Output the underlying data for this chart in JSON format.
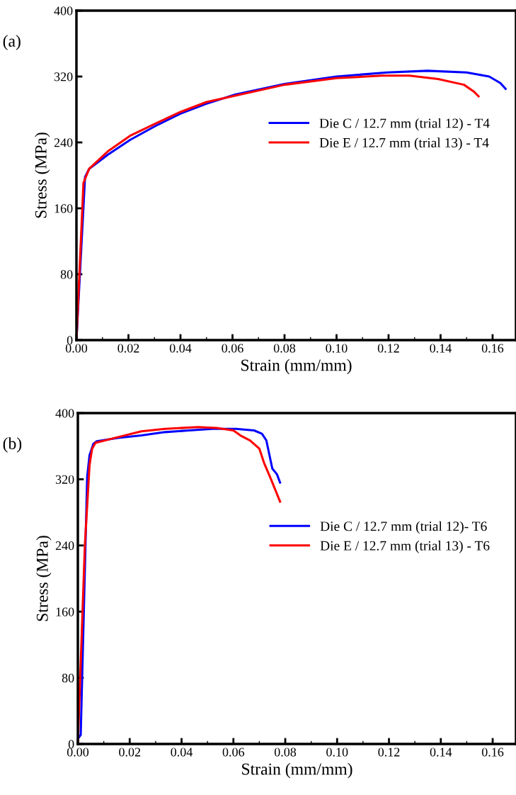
{
  "chart_data": [
    {
      "type": "line",
      "xlabel": "Strain (mm/mm)",
      "ylabel": "Stress (MPa)",
      "annotations": [
        "(a)"
      ],
      "xlim": [
        0,
        0.169
      ],
      "ylim": [
        0,
        400
      ],
      "xticks": [
        {
          "value": 0,
          "label": "0.00"
        },
        {
          "value": 0.02,
          "label": "0.02"
        },
        {
          "value": 0.04,
          "label": "0.04"
        },
        {
          "value": 0.06,
          "label": "0.06"
        },
        {
          "value": 0.08,
          "label": "0.08"
        },
        {
          "value": 0.1,
          "label": "0.10"
        },
        {
          "value": 0.12,
          "label": "0.12"
        },
        {
          "value": 0.14,
          "label": "0.14"
        },
        {
          "value": 0.16,
          "label": "0.16"
        }
      ],
      "yticks": [
        0,
        80,
        160,
        240,
        320,
        400
      ],
      "grid": false,
      "legend": "right",
      "marker": "none",
      "line_style": "solid",
      "series": [
        {
          "name": "Die C / 12.7 mm (trial 12) - T4",
          "color": "#0000ff",
          "x": [
            0,
            0.0033,
            0.0049,
            0.012,
            0.0206,
            0.0304,
            0.04,
            0.05,
            0.061,
            0.08,
            0.1,
            0.1195,
            0.135,
            0.15,
            0.1587,
            0.163,
            0.165
          ],
          "values": [
            0,
            198,
            208,
            225,
            243,
            260,
            275,
            287,
            298,
            311,
            320,
            325,
            327,
            325,
            320,
            312,
            305
          ]
        },
        {
          "name": "Die E / 12.7 mm (trial 13) - T4",
          "color": "#ff0000",
          "x": [
            0,
            0.0027,
            0.0049,
            0.012,
            0.0206,
            0.0304,
            0.04,
            0.05,
            0.08,
            0.1,
            0.1174,
            0.128,
            0.139,
            0.149,
            0.1527,
            0.1546
          ],
          "values": [
            0,
            191,
            208,
            229,
            248,
            263,
            277,
            289,
            310,
            318,
            321,
            321,
            317,
            310,
            302,
            296
          ]
        }
      ]
    },
    {
      "type": "line",
      "xlabel": "Strain (mm/mm)",
      "ylabel": "Stress (MPa)",
      "annotations": [
        "(b)"
      ],
      "xlim": [
        0,
        0.169
      ],
      "ylim": [
        0,
        400
      ],
      "xticks": [
        {
          "value": 0,
          "label": "0.00"
        },
        {
          "value": 0.02,
          "label": "0.02"
        },
        {
          "value": 0.04,
          "label": "0.04"
        },
        {
          "value": 0.06,
          "label": "0.06"
        },
        {
          "value": 0.08,
          "label": "0.08"
        },
        {
          "value": 0.1,
          "label": "0.10"
        },
        {
          "value": 0.12,
          "label": "0.12"
        },
        {
          "value": 0.14,
          "label": "0.14"
        },
        {
          "value": 0.16,
          "label": "0.16"
        }
      ],
      "yticks": [
        0,
        80,
        160,
        240,
        320,
        400
      ],
      "grid": false,
      "legend": "right",
      "marker": "none",
      "line_style": "solid",
      "series": [
        {
          "name": "Die C / 12.7 mm (trial 12)- T6",
          "color": "#0000ff",
          "x": [
            0,
            0.0011,
            0.0036,
            0.0045,
            0.006,
            0.0073,
            0.0155,
            0.0245,
            0.0336,
            0.0427,
            0.052,
            0.061,
            0.068,
            0.071,
            0.0727,
            0.075,
            0.0768,
            0.078
          ],
          "values": [
            6,
            11,
            323,
            349,
            363,
            366,
            370,
            373,
            377,
            379,
            381,
            381,
            379,
            375,
            367,
            333,
            326,
            316
          ]
        },
        {
          "name": "Die E / 12.7 mm (trial 13) - T6",
          "color": "#ff0000",
          "x": [
            0,
            0.0027,
            0.0045,
            0.0055,
            0.0068,
            0.0155,
            0.0245,
            0.0336,
            0.0464,
            0.0536,
            0.06,
            0.0627,
            0.0664,
            0.07,
            0.0718,
            0.0745,
            0.078
          ],
          "values": [
            0,
            240,
            337,
            357,
            364,
            371,
            378,
            381,
            383,
            382,
            379,
            373,
            367,
            357,
            340,
            320,
            293
          ]
        }
      ]
    }
  ]
}
